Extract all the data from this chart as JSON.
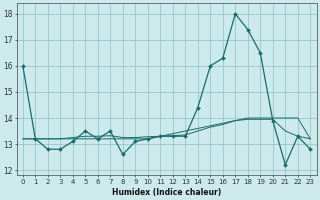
{
  "xlabel": "Humidex (Indice chaleur)",
  "ylabel": "",
  "bg_color": "#cce9ec",
  "grid_color": "#8fbfc4",
  "line_color": "#1a6b6b",
  "marker_color": "#1a6b6b",
  "xlim": [
    -0.5,
    23.5
  ],
  "ylim": [
    11.8,
    18.4
  ],
  "yticks": [
    12,
    13,
    14,
    15,
    16,
    17,
    18
  ],
  "xticks": [
    0,
    1,
    2,
    3,
    4,
    5,
    6,
    7,
    8,
    9,
    10,
    11,
    12,
    13,
    14,
    15,
    16,
    17,
    18,
    19,
    20,
    21,
    22,
    23
  ],
  "xtick_labels": [
    "0",
    "1",
    "2",
    "3",
    "4",
    "5",
    "6",
    "7",
    "8",
    "9",
    "10",
    "11",
    "12",
    "13",
    "14",
    "15",
    "16",
    "17",
    "18",
    "19",
    "20",
    "21",
    "22",
    "23"
  ],
  "series1_x": [
    0,
    1,
    2,
    3,
    4,
    5,
    6,
    7,
    8,
    9,
    10,
    11,
    12,
    13,
    14,
    15,
    16,
    17,
    18,
    19,
    20,
    21,
    22,
    23
  ],
  "series1_y": [
    16.0,
    13.2,
    12.8,
    12.8,
    13.1,
    13.5,
    13.2,
    13.5,
    12.6,
    13.1,
    13.2,
    13.3,
    13.3,
    13.3,
    14.4,
    16.0,
    16.3,
    18.0,
    17.4,
    16.5,
    13.9,
    12.2,
    13.3,
    12.8
  ],
  "series2_x": [
    0,
    1,
    2,
    3,
    4,
    5,
    6,
    7,
    8,
    9,
    10,
    11,
    12,
    13,
    14,
    15,
    16,
    17,
    18,
    19,
    20,
    21,
    22,
    23
  ],
  "series2_y": [
    13.2,
    13.2,
    13.2,
    13.2,
    13.2,
    13.2,
    13.2,
    13.2,
    13.2,
    13.2,
    13.2,
    13.3,
    13.4,
    13.5,
    13.6,
    13.7,
    13.8,
    13.9,
    14.0,
    14.0,
    14.0,
    14.0,
    14.0,
    13.2
  ],
  "series3_x": [
    0,
    1,
    2,
    3,
    4,
    5,
    6,
    7,
    8,
    9,
    10,
    11,
    12,
    13,
    14,
    15,
    16,
    17,
    18,
    19,
    20,
    21,
    22,
    23
  ],
  "series3_y": [
    13.2,
    13.2,
    13.2,
    13.2,
    13.25,
    13.3,
    13.3,
    13.32,
    13.25,
    13.25,
    13.28,
    13.3,
    13.32,
    13.35,
    13.5,
    13.65,
    13.75,
    13.9,
    13.95,
    13.95,
    13.95,
    13.5,
    13.3,
    13.2
  ],
  "xlabel_fontsize": 5.5,
  "tick_fontsize": 5.0
}
